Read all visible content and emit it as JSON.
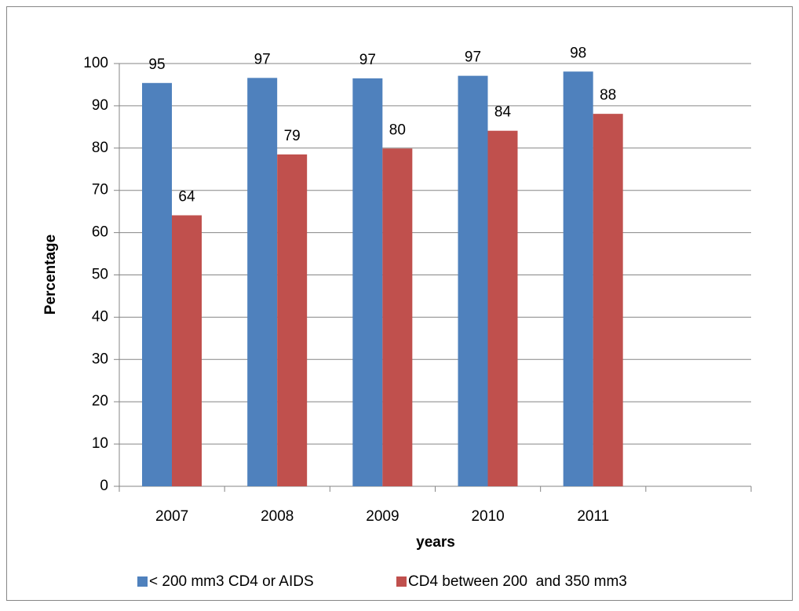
{
  "chart_data": {
    "type": "bar",
    "y_label": "Percentage",
    "x_label": "years",
    "categories": [
      "2007",
      "2008",
      "2009",
      "2010",
      "2011",
      null
    ],
    "series": [
      {
        "name": "< 200 mm3 CD4 or AIDS",
        "color": "#4f81bd",
        "values": [
          95.4,
          96.6,
          96.5,
          97.1,
          98.1,
          null
        ],
        "value_labels": [
          "95",
          "97",
          "97",
          "97",
          "98",
          null
        ]
      },
      {
        "name": "CD4 between 200  and 350 mm3",
        "color": "#c0504d",
        "values": [
          64.1,
          78.5,
          79.9,
          84.1,
          88.1,
          null
        ],
        "value_labels": [
          "64",
          "79",
          "80",
          "84",
          "88",
          null
        ]
      }
    ],
    "ylim": [
      0,
      100
    ],
    "yticks": [
      0,
      10,
      20,
      30,
      40,
      50,
      60,
      70,
      80,
      90,
      100
    ],
    "grid": true,
    "legend": "bottom"
  }
}
